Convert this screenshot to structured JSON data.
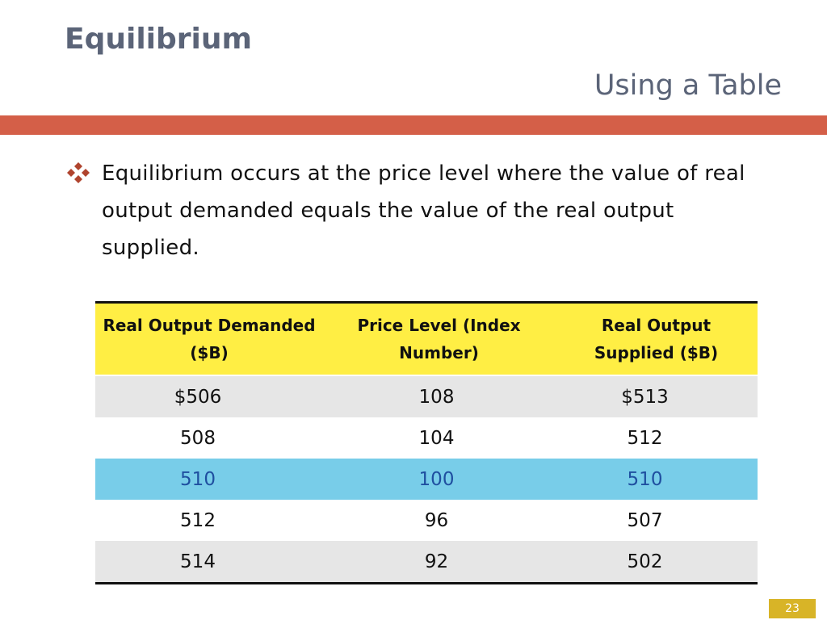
{
  "slide": {
    "title": "Equilibrium",
    "subtitle": "Using a Table",
    "bullet_icon": "diamond-cluster-icon",
    "bullet_text": "Equilibrium occurs at the price level where the value of real output demanded equals the value of the real output supplied.",
    "page_number": "23",
    "accent_color": "#d45f48",
    "highlight_color": "#78cde9",
    "header_color": "#ffee44"
  },
  "table": {
    "headers": [
      "Real Output Demanded ($B)",
      "Price Level (Index Number)",
      "Real Output Supplied  ($B)"
    ],
    "rows": [
      [
        "$506",
        "108",
        "$513"
      ],
      [
        "508",
        "104",
        "512"
      ],
      [
        "510",
        "100",
        "510"
      ],
      [
        "512",
        "96",
        "507"
      ],
      [
        "514",
        "92",
        "502"
      ]
    ],
    "highlighted_row": 2
  }
}
